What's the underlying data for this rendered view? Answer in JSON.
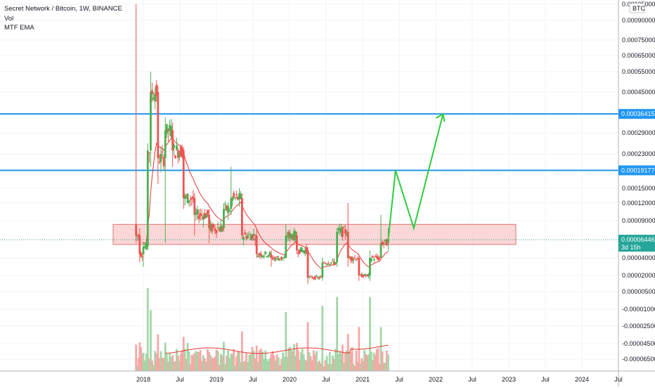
{
  "header": {
    "title": "Secret Network / Bitcoin, 1W, BINANCE",
    "indicator_vol": "Vol",
    "indicator_ema": "MTF EMA",
    "currency_button": "BTC"
  },
  "colors": {
    "up": "#4caf50",
    "down": "#ef5350",
    "vol_up": "#a5d6a7",
    "vol_down": "#f7a8a6",
    "ema": "#e53935",
    "level_line": "#2196f3",
    "zone_fill": "#f9caca",
    "zone_stroke": "#e57373",
    "projection": "#2ecc40",
    "price_tag": "#26a69a"
  },
  "chart_data": {
    "type": "candlestick",
    "symbol": "Secret Network / Bitcoin",
    "interval": "1W",
    "exchange": "BINANCE",
    "x_tick_labels": [
      "2018",
      "Jul",
      "2019",
      "Jul",
      "2020",
      "Jul",
      "2021",
      "Jul",
      "2022",
      "Jul",
      "2023",
      "Jul",
      "2024",
      "Jul"
    ],
    "y_tick_labels": [
      "0.00105000",
      "0.00090000",
      "0.00075000",
      "0.00065000",
      "0.00055000",
      "0.00045000",
      "0.00029000",
      "0.00023000",
      "0.00015000",
      "0.00012000",
      "0.00009000",
      "0.00004000",
      "0.00002000",
      "0.00000500",
      "-0.00001000",
      "-0.00002500",
      "-0.00004500",
      "-0.00006500"
    ],
    "y_tick_values": [
      0.00105,
      0.0009,
      0.00075,
      0.00065,
      0.00055,
      0.00045,
      0.00029,
      0.00023,
      0.00015,
      0.00012,
      9e-05,
      4e-05,
      2e-05,
      5e-06,
      -1e-05,
      -2.5e-05,
      -4.5e-05,
      -6.5e-05
    ],
    "horizontal_levels": [
      {
        "label": "0.00036415",
        "value": 0.00036415
      },
      {
        "label": "0.00019177",
        "value": 0.00019177
      }
    ],
    "support_zone": {
      "from_value": 5.8e-05,
      "to_value": 8.5e-05
    },
    "last_price": {
      "label": "0.00006446",
      "countdown": "3d 15h",
      "value": 6.446e-05
    },
    "candles_approx": [
      {
        "t": 2017.9,
        "o": 8.5e-05,
        "h": 0.00105,
        "l": 6e-05,
        "c": 7e-05
      },
      {
        "t": 2017.95,
        "o": 7e-05,
        "h": 8e-05,
        "l": 3.5e-05,
        "c": 4.5e-05
      },
      {
        "t": 2018.0,
        "o": 4.5e-05,
        "h": 6e-05,
        "l": 3e-05,
        "c": 5.5e-05
      },
      {
        "t": 2018.06,
        "o": 5.5e-05,
        "h": 0.00026,
        "l": 5e-05,
        "c": 0.00024
      },
      {
        "t": 2018.1,
        "o": 0.00024,
        "h": 0.00055,
        "l": 0.0002,
        "c": 0.00045
      },
      {
        "t": 2018.2,
        "o": 0.00045,
        "h": 0.00048,
        "l": 0.00016,
        "c": 0.00022
      },
      {
        "t": 2018.3,
        "o": 0.00022,
        "h": 0.00035,
        "l": 6e-05,
        "c": 0.0003
      },
      {
        "t": 2018.4,
        "o": 0.0003,
        "h": 0.00033,
        "l": 0.0002,
        "c": 0.00024
      },
      {
        "t": 2018.55,
        "o": 0.00024,
        "h": 0.00025,
        "l": 0.00011,
        "c": 0.00013
      },
      {
        "t": 2018.7,
        "o": 0.00013,
        "h": 0.00014,
        "l": 7e-05,
        "c": 0.0001
      },
      {
        "t": 2018.9,
        "o": 0.0001,
        "h": 0.00011,
        "l": 6e-05,
        "c": 8e-05
      },
      {
        "t": 2019.1,
        "o": 8e-05,
        "h": 0.00012,
        "l": 7.5e-05,
        "c": 0.00011
      },
      {
        "t": 2019.2,
        "o": 0.00011,
        "h": 0.0002,
        "l": 0.0001,
        "c": 0.00013
      },
      {
        "t": 2019.35,
        "o": 0.00013,
        "h": 0.00014,
        "l": 6.5e-05,
        "c": 7e-05
      },
      {
        "t": 2019.55,
        "o": 7e-05,
        "h": 8e-05,
        "l": 4e-05,
        "c": 4.5e-05
      },
      {
        "t": 2019.75,
        "o": 4.5e-05,
        "h": 5e-05,
        "l": 3e-05,
        "c": 4e-05
      },
      {
        "t": 2019.95,
        "o": 4e-05,
        "h": 8.5e-05,
        "l": 4e-05,
        "c": 7e-05
      },
      {
        "t": 2020.1,
        "o": 7e-05,
        "h": 7.5e-05,
        "l": 4.5e-05,
        "c": 5e-05
      },
      {
        "t": 2020.25,
        "o": 5e-05,
        "h": 5.5e-05,
        "l": 1.2e-05,
        "c": 1.8e-05
      },
      {
        "t": 2020.45,
        "o": 1.8e-05,
        "h": 4e-05,
        "l": 1.5e-05,
        "c": 3.5e-05
      },
      {
        "t": 2020.65,
        "o": 3.5e-05,
        "h": 8e-05,
        "l": 3e-05,
        "c": 7.5e-05
      },
      {
        "t": 2020.8,
        "o": 7.5e-05,
        "h": 0.00012,
        "l": 3e-05,
        "c": 4e-05
      },
      {
        "t": 2020.95,
        "o": 4e-05,
        "h": 4.5e-05,
        "l": 1.5e-05,
        "c": 2e-05
      },
      {
        "t": 2021.1,
        "o": 2e-05,
        "h": 5e-05,
        "l": 1.5e-05,
        "c": 4e-05
      },
      {
        "t": 2021.25,
        "o": 4e-05,
        "h": 0.0001,
        "l": 4.5e-05,
        "c": 6e-05
      },
      {
        "t": 2021.35,
        "o": 6e-05,
        "h": 8e-05,
        "l": 5e-05,
        "c": 6.446e-05
      }
    ],
    "projection_path": [
      {
        "t": 2021.35,
        "value": 6.446e-05
      },
      {
        "t": 2021.45,
        "value": 0.00019177
      },
      {
        "t": 2021.7,
        "value": 8e-05
      },
      {
        "t": 2022.1,
        "value": 0.00036415
      }
    ]
  }
}
